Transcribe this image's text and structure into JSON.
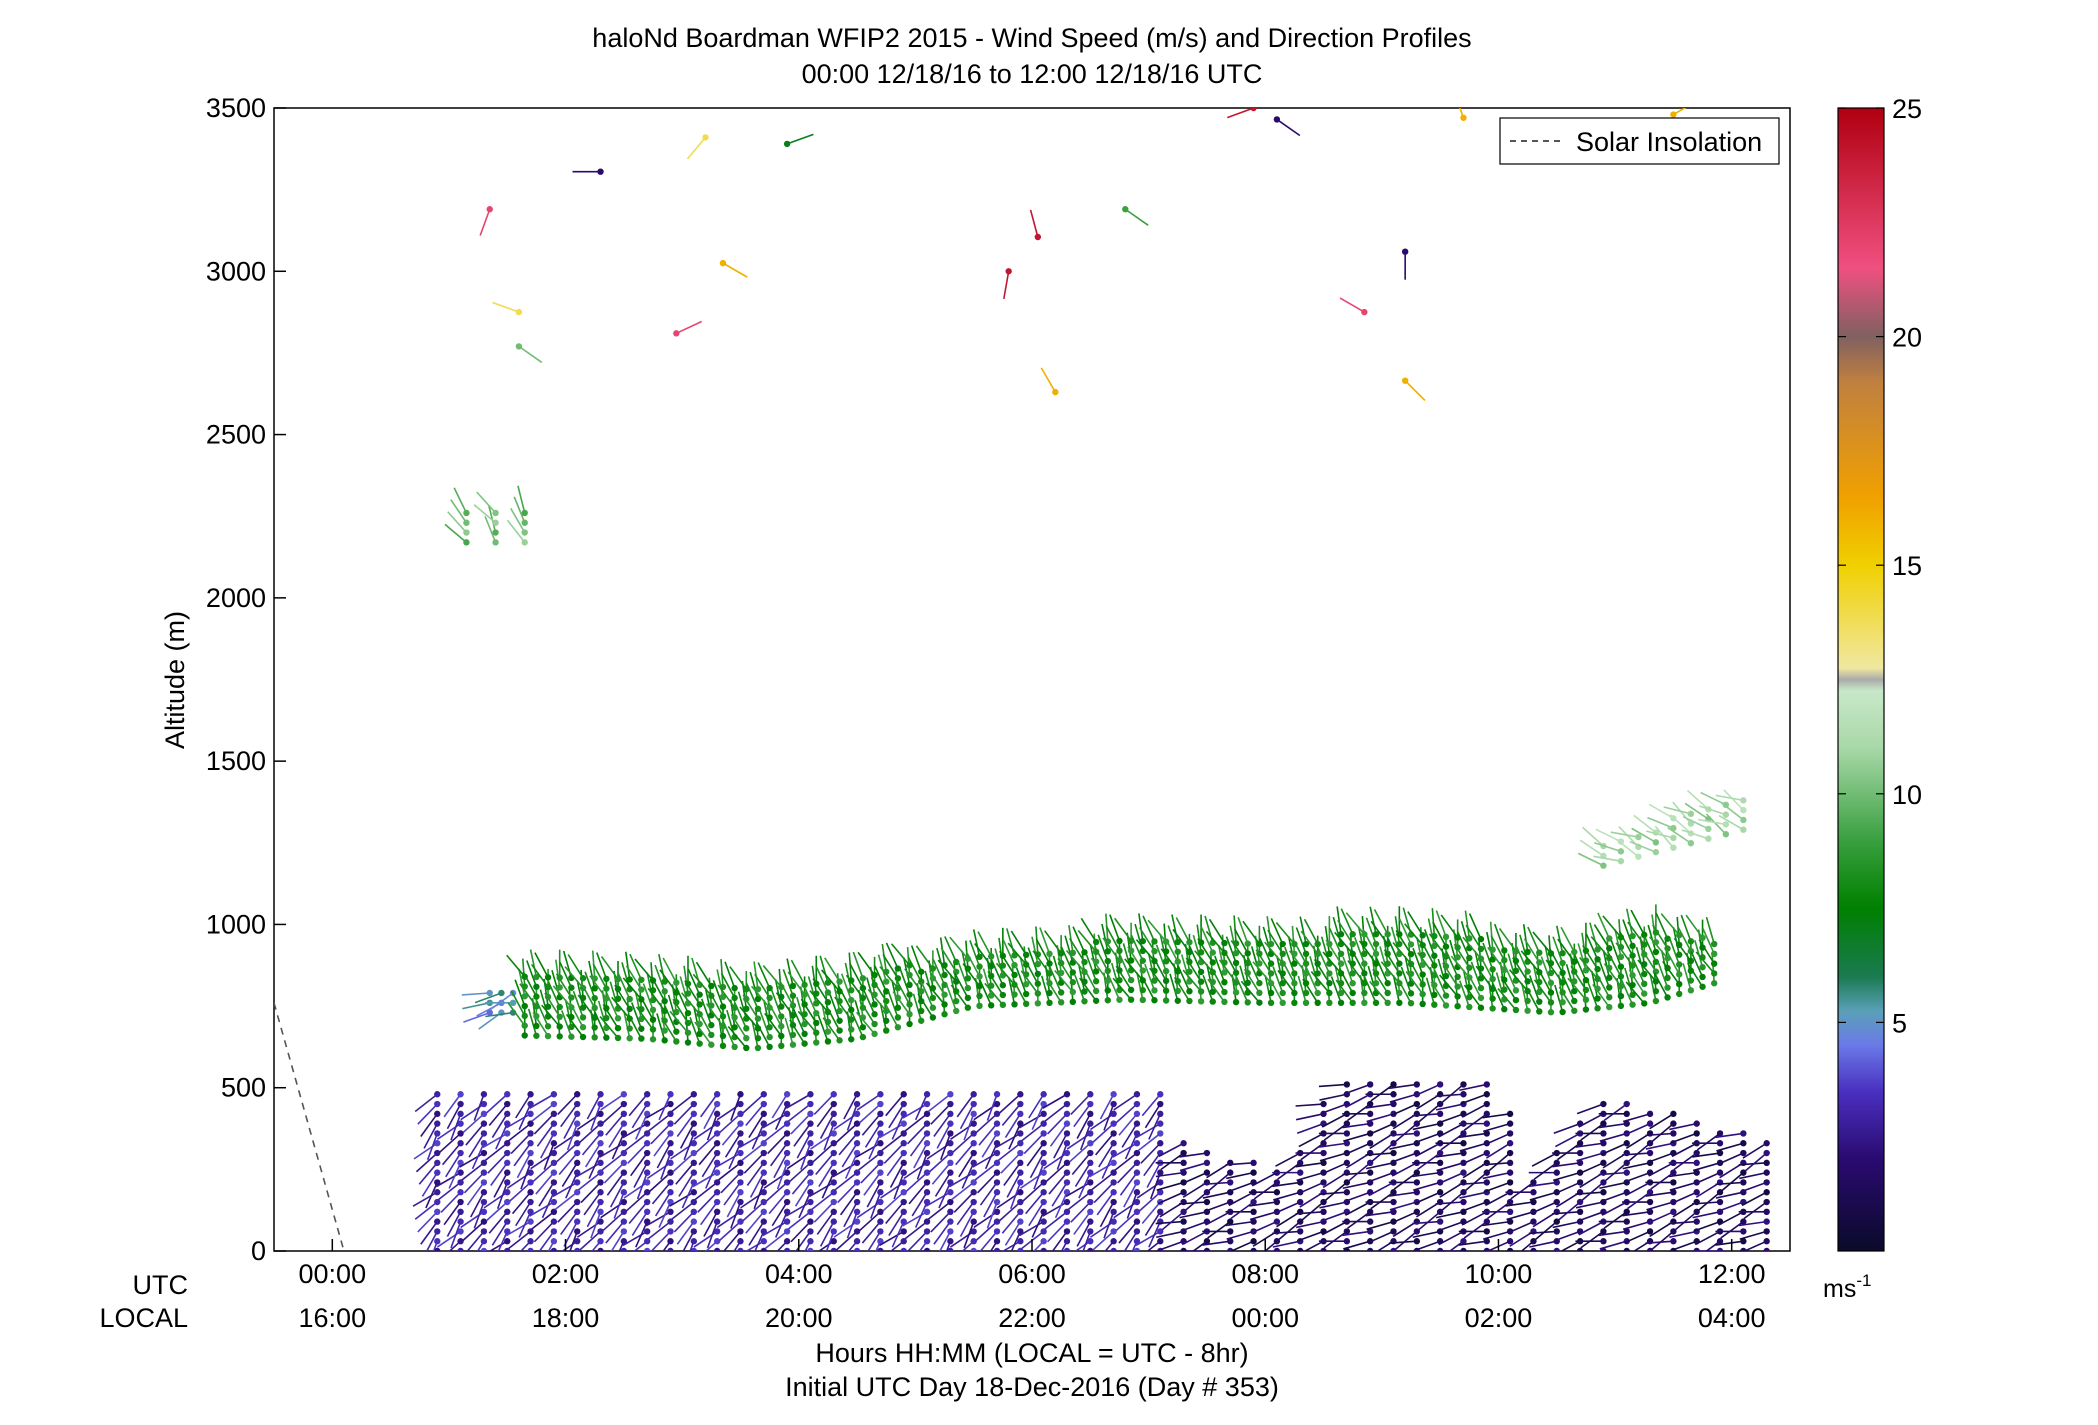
{
  "chart_data": {
    "type": "scatter",
    "subtype": "wind-barb profile",
    "title": "haloNd Boardman WFIP2 2015 - Wind Speed (m/s) and Direction Profiles",
    "subtitle": "00:00 12/18/16 to 12:00 12/18/16  UTC",
    "ylabel": "Altitude (m)",
    "xlabel": "Hours HH:MM  (LOCAL = UTC - 8hr)",
    "xlabel2": "Initial UTC Day 18-Dec-2016 (Day # 353)",
    "xaxis_row_labels": [
      "UTC",
      "LOCAL"
    ],
    "xlim": [
      -0.5,
      12.5
    ],
    "ylim": [
      0,
      3500
    ],
    "y_ticks": [
      {
        "value": 0,
        "label": "0"
      },
      {
        "value": 500,
        "label": "500"
      },
      {
        "value": 1000,
        "label": "1000"
      },
      {
        "value": 1500,
        "label": "1500"
      },
      {
        "value": 2000,
        "label": "2000"
      },
      {
        "value": 2500,
        "label": "2500"
      },
      {
        "value": 3000,
        "label": "3000"
      },
      {
        "value": 3500,
        "label": "3500"
      }
    ],
    "x_ticks": [
      {
        "value": 0,
        "utc": "00:00",
        "local": "16:00"
      },
      {
        "value": 2,
        "utc": "02:00",
        "local": "18:00"
      },
      {
        "value": 4,
        "utc": "04:00",
        "local": "20:00"
      },
      {
        "value": 6,
        "utc": "06:00",
        "local": "22:00"
      },
      {
        "value": 8,
        "utc": "08:00",
        "local": "00:00"
      },
      {
        "value": 10,
        "utc": "10:00",
        "local": "02:00"
      },
      {
        "value": 12,
        "utc": "12:00",
        "local": "04:00"
      }
    ],
    "colorbar": {
      "min": 0,
      "max": 25,
      "ticks": [
        {
          "value": 5,
          "label": "5"
        },
        {
          "value": 10,
          "label": "10"
        },
        {
          "value": 15,
          "label": "15"
        },
        {
          "value": 20,
          "label": "20"
        },
        {
          "value": 25,
          "label": "25"
        }
      ],
      "unit_label": "ms",
      "unit_exponent": "-1"
    },
    "legend": {
      "position": "top-right",
      "entries": [
        {
          "label": "Solar Insolation",
          "style": "dashed",
          "color": "#555555"
        }
      ]
    },
    "solar_insolation_line": [
      {
        "x": -0.5,
        "y": 760
      },
      {
        "x": 0.1,
        "y": 0
      }
    ],
    "grid": false,
    "isolated_barbs": [
      {
        "x": 1.35,
        "y": 3190,
        "speed": 22,
        "dir": 200
      },
      {
        "x": 1.6,
        "y": 2875,
        "speed": 14,
        "dir": 290
      },
      {
        "x": 1.6,
        "y": 2770,
        "speed": 10,
        "dir": 125
      },
      {
        "x": 2.3,
        "y": 3305,
        "speed": 2,
        "dir": 270
      },
      {
        "x": 2.95,
        "y": 2810,
        "speed": 22,
        "dir": 65
      },
      {
        "x": 3.2,
        "y": 3410,
        "speed": 14,
        "dir": 220
      },
      {
        "x": 3.9,
        "y": 3390,
        "speed": 7,
        "dir": 70
      },
      {
        "x": 3.35,
        "y": 3025,
        "speed": 16,
        "dir": 120
      },
      {
        "x": 5.8,
        "y": 3000,
        "speed": 24,
        "dir": 190
      },
      {
        "x": 6.05,
        "y": 3105,
        "speed": 24,
        "dir": 345
      },
      {
        "x": 6.2,
        "y": 2630,
        "speed": 16,
        "dir": 330
      },
      {
        "x": 6.8,
        "y": 3190,
        "speed": 9,
        "dir": 125
      },
      {
        "x": 7.9,
        "y": 3500,
        "speed": 24,
        "dir": 250
      },
      {
        "x": 8.1,
        "y": 3465,
        "speed": 2,
        "dir": 125
      },
      {
        "x": 8.85,
        "y": 2875,
        "speed": 22,
        "dir": 300
      },
      {
        "x": 9.2,
        "y": 3060,
        "speed": 2,
        "dir": 180
      },
      {
        "x": 9.2,
        "y": 2665,
        "speed": 16,
        "dir": 135
      },
      {
        "x": 9.7,
        "y": 3470,
        "speed": 16,
        "dir": 340
      },
      {
        "x": 11.5,
        "y": 3480,
        "speed": 16,
        "dir": 60
      }
    ],
    "barb_groups": [
      {
        "name": "upper-green",
        "x_start": 1.15,
        "x_end": 1.65,
        "step": 0.25,
        "y_start": 2170,
        "y_end": 2260,
        "speed": 10,
        "dir": 330
      },
      {
        "name": "low-jet-light",
        "x_start": 1.35,
        "x_end": 1.6,
        "step": 0.1,
        "y_start": 730,
        "y_end": 810,
        "speed": 5,
        "dir": 250
      },
      {
        "name": "low-jet",
        "x_start": 1.65,
        "x_end": 11.85,
        "step": 0.1,
        "speed": 8,
        "dir": 340,
        "height_profile": [
          {
            "x": 1.65,
            "lo": 660,
            "hi": 850
          },
          {
            "x": 2.7,
            "lo": 650,
            "hi": 840
          },
          {
            "x": 3.6,
            "lo": 620,
            "hi": 820
          },
          {
            "x": 4.5,
            "lo": 650,
            "hi": 860
          },
          {
            "x": 5.5,
            "lo": 750,
            "hi": 900
          },
          {
            "x": 6.8,
            "lo": 770,
            "hi": 960
          },
          {
            "x": 8.0,
            "lo": 760,
            "hi": 960
          },
          {
            "x": 9.2,
            "lo": 760,
            "hi": 980
          },
          {
            "x": 10.5,
            "lo": 730,
            "hi": 930
          },
          {
            "x": 11.3,
            "lo": 760,
            "hi": 980
          },
          {
            "x": 11.85,
            "lo": 820,
            "hi": 960
          }
        ]
      },
      {
        "name": "upper-right",
        "x_start": 10.9,
        "x_end": 12.1,
        "step": 0.15,
        "speed": 11,
        "dir": 300,
        "height_profile": [
          {
            "x": 10.9,
            "lo": 1180,
            "hi": 1250
          },
          {
            "x": 12.1,
            "lo": 1290,
            "hi": 1400
          }
        ]
      },
      {
        "name": "boundary-layer-a",
        "x_start": 0.9,
        "x_end": 7.2,
        "step": 0.2,
        "speed": 3,
        "dir": 220,
        "height_profile": [
          {
            "x": 0.9,
            "lo": 0,
            "hi": 500
          },
          {
            "x": 7.2,
            "lo": 0,
            "hi": 500
          }
        ]
      },
      {
        "name": "boundary-layer-b",
        "x_start": 7.3,
        "x_end": 12.3,
        "step": 0.2,
        "speed": 1.5,
        "dir": 250,
        "height_profile": [
          {
            "x": 7.3,
            "lo": 0,
            "hi": 330
          },
          {
            "x": 8.2,
            "lo": 0,
            "hi": 260
          },
          {
            "x": 8.6,
            "lo": 0,
            "hi": 520
          },
          {
            "x": 10.0,
            "lo": 0,
            "hi": 520
          },
          {
            "x": 10.3,
            "lo": 0,
            "hi": 220
          },
          {
            "x": 10.9,
            "lo": 0,
            "hi": 480
          },
          {
            "x": 12.3,
            "lo": 0,
            "hi": 350
          }
        ]
      }
    ]
  }
}
